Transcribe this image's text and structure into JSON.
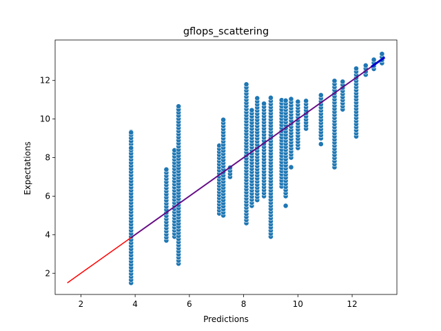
{
  "chart_data": {
    "type": "scatter",
    "title": "gflops_scattering",
    "xlabel": "Predictions",
    "ylabel": "Expectations",
    "xlim": [
      1.05,
      13.65
    ],
    "ylim": [
      0.9,
      14.1
    ],
    "xticks": [
      2,
      4,
      6,
      8,
      10,
      12
    ],
    "yticks": [
      2,
      4,
      6,
      8,
      10,
      12
    ],
    "grid": false,
    "colors": {
      "points": "#1f77b4",
      "point_edge": "#ffffff",
      "ideal_line": "#ff0000",
      "fit_line": "#0000cc"
    },
    "ideal_line": {
      "x": [
        1.5,
        13.2
      ],
      "y": [
        1.5,
        13.2
      ]
    },
    "fit_line": {
      "x": [
        3.85,
        13.2
      ],
      "y": [
        3.85,
        13.2
      ]
    },
    "columns": [
      {
        "x": 3.85,
        "ymin": 1.5,
        "ymax": 9.4,
        "outliers": [
          8.5,
          9.3
        ]
      },
      {
        "x": 5.15,
        "ymin": 3.7,
        "ymax": 7.5,
        "outliers": []
      },
      {
        "x": 5.45,
        "ymin": 3.9,
        "ymax": 8.5,
        "outliers": []
      },
      {
        "x": 5.6,
        "ymin": 2.5,
        "ymax": 10.8,
        "outliers": []
      },
      {
        "x": 7.1,
        "ymin": 5.1,
        "ymax": 8.7,
        "outliers": []
      },
      {
        "x": 7.25,
        "ymin": 5.0,
        "ymax": 10.0,
        "outliers": []
      },
      {
        "x": 7.5,
        "ymin": 7.0,
        "ymax": 7.5,
        "outliers": []
      },
      {
        "x": 8.1,
        "ymin": 4.6,
        "ymax": 11.8,
        "outliers": []
      },
      {
        "x": 8.3,
        "ymin": 5.5,
        "ymax": 10.5,
        "outliers": []
      },
      {
        "x": 8.5,
        "ymin": 5.8,
        "ymax": 11.2,
        "outliers": []
      },
      {
        "x": 8.75,
        "ymin": 6.0,
        "ymax": 10.8,
        "outliers": []
      },
      {
        "x": 9.0,
        "ymin": 3.9,
        "ymax": 11.2,
        "outliers": []
      },
      {
        "x": 9.4,
        "ymin": 6.5,
        "ymax": 11.0,
        "outliers": []
      },
      {
        "x": 9.55,
        "ymin": 6.0,
        "ymax": 11.1,
        "outliers": [
          5.5
        ]
      },
      {
        "x": 9.75,
        "ymin": 8.0,
        "ymax": 11.1,
        "outliers": [
          7.5
        ]
      },
      {
        "x": 10.0,
        "ymin": 8.5,
        "ymax": 11.0,
        "outliers": []
      },
      {
        "x": 10.3,
        "ymin": 9.5,
        "ymax": 11.0,
        "outliers": []
      },
      {
        "x": 10.85,
        "ymin": 9.0,
        "ymax": 11.3,
        "outliers": [
          8.7
        ]
      },
      {
        "x": 11.35,
        "ymin": 7.5,
        "ymax": 12.0,
        "outliers": []
      },
      {
        "x": 11.65,
        "ymin": 10.5,
        "ymax": 12.0,
        "outliers": []
      },
      {
        "x": 12.15,
        "ymin": 9.1,
        "ymax": 12.7,
        "outliers": []
      },
      {
        "x": 12.5,
        "ymin": 12.3,
        "ymax": 12.8,
        "outliers": []
      },
      {
        "x": 12.8,
        "ymin": 12.6,
        "ymax": 13.2,
        "outliers": []
      },
      {
        "x": 13.1,
        "ymin": 12.9,
        "ymax": 13.4,
        "outliers": []
      }
    ]
  }
}
